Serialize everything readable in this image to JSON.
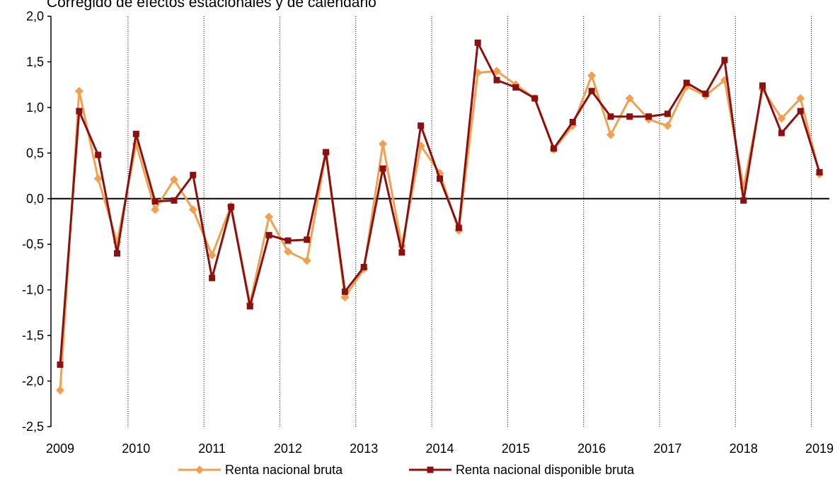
{
  "chart_data": {
    "type": "line",
    "subtitle": "Corregido de efectos estacionales y de calendario",
    "xlabel": "",
    "ylabel": "",
    "ylim": [
      -2.5,
      2.0
    ],
    "yticks": [
      2.0,
      1.5,
      1.0,
      0.5,
      0.0,
      -0.5,
      -1.0,
      -1.5,
      -2.0,
      -2.5
    ],
    "ytick_labels": [
      "2,0",
      "1,5",
      "1,0",
      "0,5",
      "0,0",
      "-0,5",
      "-1,0",
      "-1,5",
      "-2,0",
      "-2,5"
    ],
    "x_tick_labels": [
      "2009",
      "2010",
      "2011",
      "2012",
      "2013",
      "2014",
      "2015",
      "2016",
      "2017",
      "2018",
      "2019"
    ],
    "x_unit": "quarter",
    "gridlines": "vertical dotted at each year",
    "legend_position": "bottom",
    "series": [
      {
        "name": "Renta nacional bruta",
        "color": "#F0A050",
        "marker": "diamond",
        "values": [
          -2.1,
          1.18,
          0.22,
          -0.48,
          0.6,
          -0.12,
          0.21,
          -0.12,
          -0.62,
          -0.08,
          -1.15,
          -0.2,
          -0.58,
          -0.68,
          0.5,
          -1.08,
          -0.77,
          0.6,
          -0.52,
          0.58,
          0.28,
          -0.35,
          1.38,
          1.4,
          1.25,
          1.1,
          0.54,
          0.8,
          1.35,
          0.7,
          1.1,
          0.87,
          0.8,
          1.23,
          1.13,
          1.3,
          0.12,
          1.2,
          0.88,
          1.1,
          0.27
        ]
      },
      {
        "name": "Renta nacional disponible bruta",
        "color": "#8B1010",
        "marker": "square",
        "values": [
          -1.82,
          0.96,
          0.48,
          -0.6,
          0.71,
          -0.03,
          -0.02,
          0.26,
          -0.87,
          -0.09,
          -1.18,
          -0.4,
          -0.46,
          -0.45,
          0.51,
          -1.02,
          -0.75,
          0.33,
          -0.59,
          0.8,
          0.22,
          -0.32,
          1.71,
          1.3,
          1.22,
          1.1,
          0.55,
          0.84,
          1.18,
          0.9,
          0.9,
          0.9,
          0.93,
          1.27,
          1.15,
          1.52,
          -0.02,
          1.24,
          0.72,
          0.96,
          0.29
        ]
      }
    ]
  }
}
